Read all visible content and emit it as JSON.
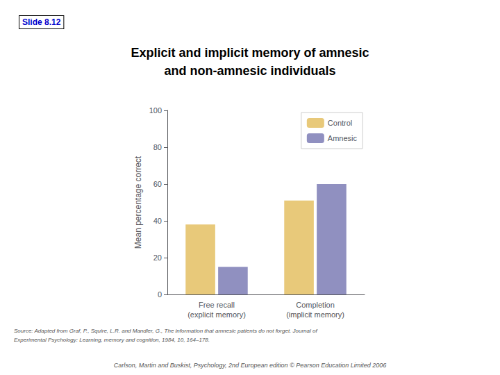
{
  "chart_data": {
    "type": "bar",
    "title": "Explicit and implicit memory of amnesic\nand non-amnesic individuals",
    "categories": [
      "Free recall\n(explicit memory)",
      "Completion\n(implicit memory)"
    ],
    "series": [
      {
        "name": "Control",
        "color": "#E8C97A",
        "values": [
          38,
          51
        ]
      },
      {
        "name": "Amnesic",
        "color": "#9090C0",
        "values": [
          15,
          60
        ]
      }
    ],
    "ylabel": "Mean percentage correct",
    "ylim": [
      0,
      100
    ],
    "yticks": [
      0,
      20,
      40,
      60,
      80,
      100
    ],
    "grid": false,
    "legend": "upper right",
    "annotations": [
      "Slide 8.12",
      "Source: Adapted from Graf, P., Squire, L.R. and Mandler, G., The information that amnesic patients do not forget. Journal of\nExperimental Psychology: Learning, memory and cognition, 1984, 10, 164–178.",
      "Carlson, Martin and Buskist, Psychology, 2nd European edition © Pearson Education Limited 2006"
    ]
  }
}
